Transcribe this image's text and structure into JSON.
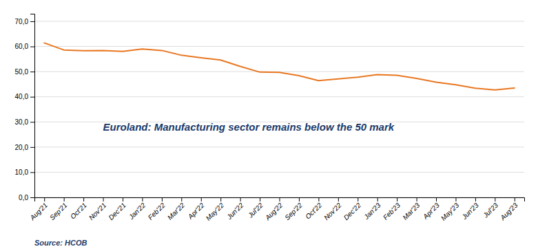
{
  "chart_data": {
    "type": "line",
    "title": "Euroland: Manufacturing sector remains below the 50 mark",
    "annotations": [
      "Source: HCOB"
    ],
    "categories": [
      "Aug'21",
      "Sep'21",
      "Oct'21",
      "Nov'21",
      "Dec'21",
      "Jan'22",
      "Feb'22",
      "Mar'22",
      "Apr'22",
      "May'22",
      "Jun'22",
      "Jul'22",
      "Aug'22",
      "Sep'22",
      "Oct'22",
      "Nov'22",
      "Dec'22",
      "Jan'23",
      "Feb'23",
      "Mar'23",
      "Apr'23",
      "May'23",
      "Jun'23",
      "Jul'23",
      "Aug'23"
    ],
    "values": [
      61.4,
      58.6,
      58.3,
      58.4,
      58.0,
      59.0,
      58.4,
      56.5,
      55.5,
      54.6,
      52.1,
      49.8,
      49.7,
      48.4,
      46.4,
      47.1,
      47.8,
      48.8,
      48.5,
      47.3,
      45.8,
      44.8,
      43.4,
      42.7,
      43.5
    ],
    "color": "#E87722",
    "ylim": [
      0,
      73
    ],
    "yticks": [
      {
        "value": 0,
        "label": "0,0"
      },
      {
        "value": 10,
        "label": "10,0"
      },
      {
        "value": 20,
        "label": "20,0"
      },
      {
        "value": 30,
        "label": "30,0"
      },
      {
        "value": 40,
        "label": "40,0"
      },
      {
        "value": 50,
        "label": "50,0"
      },
      {
        "value": 60,
        "label": "60,0"
      },
      {
        "value": 70,
        "label": "70,0"
      }
    ],
    "grid": true
  }
}
